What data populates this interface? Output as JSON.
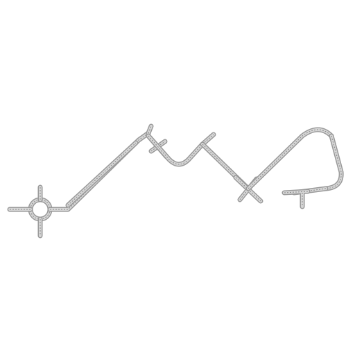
{
  "map": {
    "background_color": "#ffffff",
    "road_casing_color": "#9a9a9a",
    "road_fill_color": "#d6d6d6",
    "road_dash_color": "#8a8a8a",
    "features": [
      {
        "name": "roundabout",
        "kind": "roundabout"
      },
      {
        "name": "road-west-spur",
        "kind": "road"
      },
      {
        "name": "road-north-spur",
        "kind": "road"
      },
      {
        "name": "road-south-spur",
        "kind": "road"
      },
      {
        "name": "road-main-diagonal",
        "kind": "road"
      },
      {
        "name": "road-main-diagonal-parallel",
        "kind": "road"
      },
      {
        "name": "road-junction-a-spur",
        "kind": "road"
      },
      {
        "name": "road-junction-b-cross",
        "kind": "road"
      },
      {
        "name": "road-valley-curve",
        "kind": "road"
      },
      {
        "name": "road-peak-spur",
        "kind": "road"
      },
      {
        "name": "road-descent-to-cross",
        "kind": "road"
      },
      {
        "name": "road-cross-junction-stubs",
        "kind": "road"
      },
      {
        "name": "road-loop-ascent",
        "kind": "road"
      },
      {
        "name": "road-loop-hairpin",
        "kind": "road"
      },
      {
        "name": "road-loop-return",
        "kind": "road"
      },
      {
        "name": "road-end-t-junction",
        "kind": "road"
      }
    ]
  }
}
